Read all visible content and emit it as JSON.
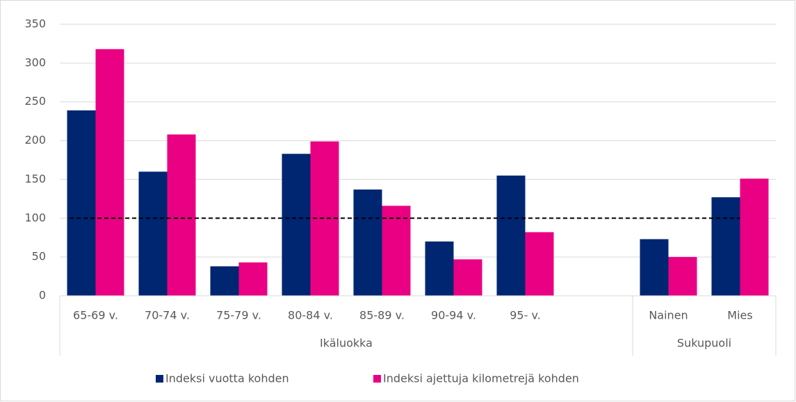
{
  "chart_data": {
    "type": "bar",
    "categories": [
      "65-69 v.",
      "70-74 v.",
      "75-79 v.",
      "80-84 v.",
      "85-89 v.",
      "90-94 v.",
      "95- v.",
      null,
      "Nainen",
      "Mies"
    ],
    "groups": [
      {
        "name": "Ikäluokka",
        "count": 8
      },
      {
        "name": "Sukupuoli",
        "count": 2
      }
    ],
    "series": [
      {
        "name": "Indeksi vuotta kohden",
        "color": "#002672",
        "values": [
          239,
          160,
          38,
          183,
          137,
          70,
          155,
          null,
          73,
          127
        ]
      },
      {
        "name": "Indeksi ajettuja kilometrejä kohden",
        "color": "#ea0083",
        "values": [
          318,
          208,
          43,
          199,
          116,
          47,
          82,
          null,
          50,
          151
        ]
      }
    ],
    "reference_line": 100,
    "ylim": [
      0,
      350
    ],
    "yticks": [
      0,
      50,
      100,
      150,
      200,
      250,
      300,
      350
    ],
    "grid": true,
    "legend": "bottom"
  }
}
